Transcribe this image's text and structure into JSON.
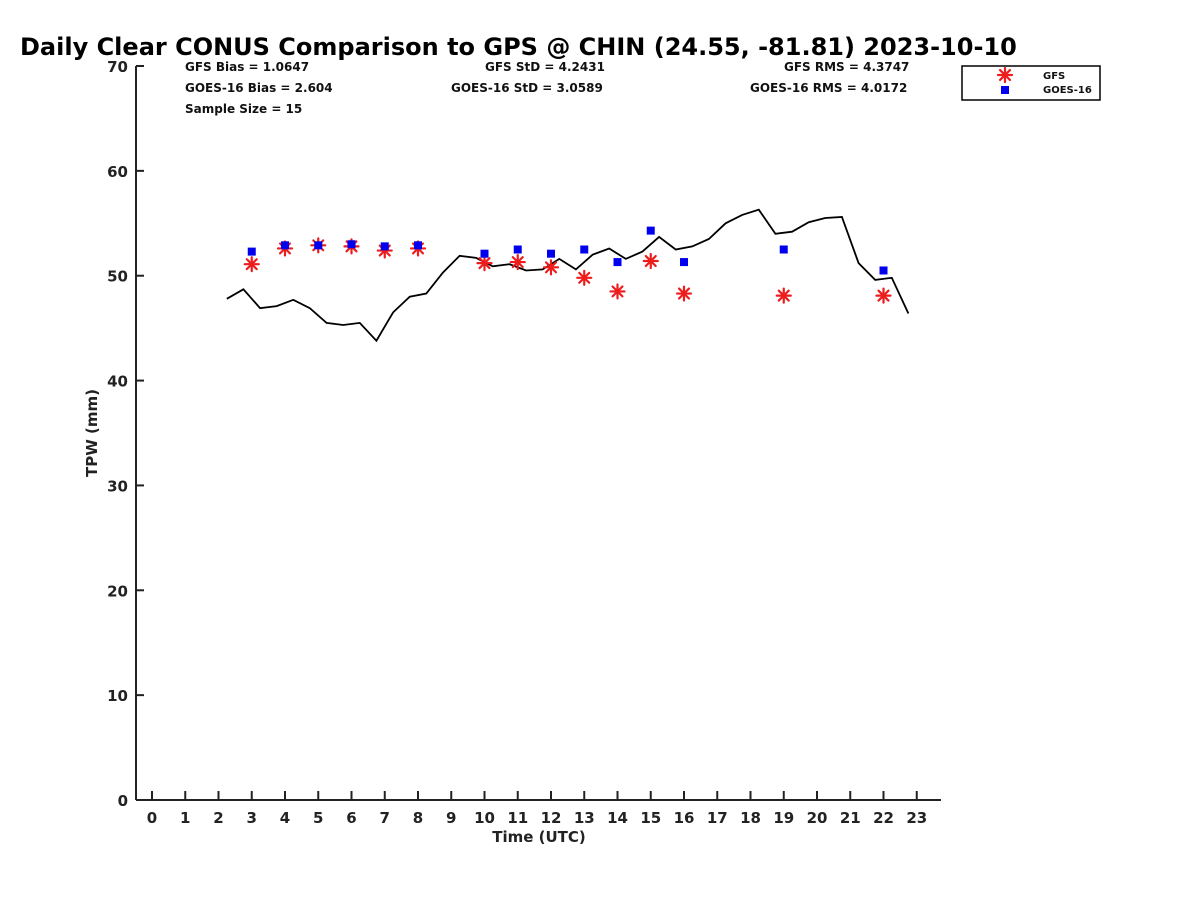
{
  "chart_data": {
    "type": "scatter",
    "title": "Daily Clear CONUS Comparison to GPS @ CHIN (24.55, -81.81) 2023-10-10",
    "xlabel": "Time (UTC)",
    "ylabel": "TPW (mm)",
    "xlim": [
      -0.5,
      23.7
    ],
    "ylim": [
      0,
      70
    ],
    "xticks": [
      "0",
      "1",
      "2",
      "3",
      "4",
      "5",
      "6",
      "7",
      "8",
      "9",
      "10",
      "11",
      "12",
      "13",
      "14",
      "15",
      "16",
      "17",
      "18",
      "19",
      "20",
      "21",
      "22",
      "23"
    ],
    "yticks": [
      "0",
      "10",
      "20",
      "30",
      "40",
      "50",
      "60",
      "70"
    ],
    "grid": false,
    "legend_position": "top-right",
    "stats": {
      "gfs_bias": "GFS Bias = 1.0647",
      "goes_bias": "GOES-16 Bias = 2.604",
      "sample_size": "Sample Size = 15",
      "gfs_std": "GFS StD = 4.2431",
      "goes_std": "GOES-16 StD = 3.0589",
      "gfs_rms": "GFS RMS = 4.3747",
      "goes_rms": "GOES-16 RMS = 4.0172"
    },
    "series": [
      {
        "name": "GFS",
        "kind": "scatter",
        "marker": "asterisk",
        "color": "#ee1c1c",
        "points": [
          [
            3,
            51.1
          ],
          [
            4,
            52.6
          ],
          [
            5,
            52.9
          ],
          [
            6,
            52.8
          ],
          [
            7,
            52.4
          ],
          [
            8,
            52.6
          ],
          [
            10,
            51.2
          ],
          [
            11,
            51.3
          ],
          [
            12,
            50.8
          ],
          [
            13,
            49.8
          ],
          [
            14,
            48.5
          ],
          [
            15,
            51.4
          ],
          [
            16,
            48.3
          ],
          [
            19,
            48.1
          ],
          [
            22,
            48.1
          ]
        ]
      },
      {
        "name": "GOES-16",
        "kind": "scatter",
        "marker": "square",
        "color": "#0000ee",
        "points": [
          [
            3,
            52.3
          ],
          [
            4,
            52.9
          ],
          [
            5,
            52.9
          ],
          [
            6,
            53.0
          ],
          [
            7,
            52.8
          ],
          [
            8,
            52.9
          ],
          [
            10,
            52.1
          ],
          [
            11,
            52.5
          ],
          [
            12,
            52.1
          ],
          [
            13,
            52.5
          ],
          [
            14,
            51.3
          ],
          [
            15,
            54.3
          ],
          [
            16,
            51.3
          ],
          [
            19,
            52.5
          ],
          [
            22,
            50.5
          ]
        ]
      },
      {
        "name": "",
        "kind": "line",
        "color": "#000000",
        "points": [
          [
            2.25,
            47.8
          ],
          [
            2.75,
            48.7
          ],
          [
            3.25,
            46.9
          ],
          [
            3.75,
            47.1
          ],
          [
            4.25,
            47.7
          ],
          [
            4.75,
            46.9
          ],
          [
            5.25,
            45.5
          ],
          [
            5.75,
            45.3
          ],
          [
            6.25,
            45.5
          ],
          [
            6.75,
            43.8
          ],
          [
            7.25,
            46.5
          ],
          [
            7.75,
            48.0
          ],
          [
            8.25,
            48.3
          ],
          [
            8.75,
            50.3
          ],
          [
            9.25,
            51.9
          ],
          [
            9.75,
            51.7
          ],
          [
            10.25,
            50.9
          ],
          [
            10.75,
            51.1
          ],
          [
            11.25,
            50.5
          ],
          [
            11.75,
            50.6
          ],
          [
            12.25,
            51.6
          ],
          [
            12.75,
            50.6
          ],
          [
            13.25,
            52.0
          ],
          [
            13.75,
            52.6
          ],
          [
            14.25,
            51.6
          ],
          [
            14.75,
            52.3
          ],
          [
            15.25,
            53.7
          ],
          [
            15.75,
            52.5
          ],
          [
            16.25,
            52.8
          ],
          [
            16.75,
            53.5
          ],
          [
            17.25,
            55.0
          ],
          [
            17.75,
            55.8
          ],
          [
            18.25,
            56.3
          ],
          [
            18.75,
            54.0
          ],
          [
            19.25,
            54.2
          ],
          [
            19.75,
            55.1
          ],
          [
            20.25,
            55.5
          ],
          [
            20.75,
            55.6
          ],
          [
            21.25,
            51.2
          ],
          [
            21.75,
            49.6
          ],
          [
            22.25,
            49.8
          ],
          [
            22.75,
            46.4
          ]
        ]
      }
    ]
  }
}
